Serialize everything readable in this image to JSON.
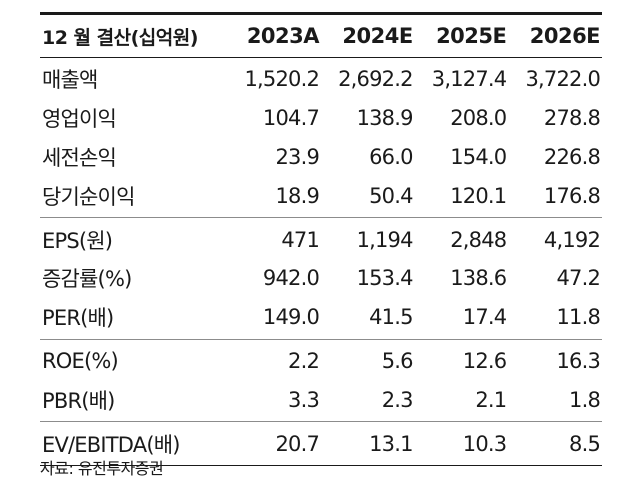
{
  "table": {
    "header": {
      "label": "12 월 결산(십억원)",
      "columns": [
        "2023A",
        "2024E",
        "2025E",
        "2026E"
      ]
    },
    "groups": [
      [
        {
          "label": "매출액",
          "values": [
            "1,520.2",
            "2,692.2",
            "3,127.4",
            "3,722.0"
          ]
        },
        {
          "label": "영업이익",
          "values": [
            "104.7",
            "138.9",
            "208.0",
            "278.8"
          ]
        },
        {
          "label": "세전손익",
          "values": [
            "23.9",
            "66.0",
            "154.0",
            "226.8"
          ]
        },
        {
          "label": "당기순이익",
          "values": [
            "18.9",
            "50.4",
            "120.1",
            "176.8"
          ]
        }
      ],
      [
        {
          "label": "EPS(원)",
          "values": [
            "471",
            "1,194",
            "2,848",
            "4,192"
          ]
        },
        {
          "label": "증감률(%)",
          "values": [
            "942.0",
            "153.4",
            "138.6",
            "47.2"
          ]
        },
        {
          "label": "PER(배)",
          "values": [
            "149.0",
            "41.5",
            "17.4",
            "11.8"
          ]
        }
      ],
      [
        {
          "label": "ROE(%)",
          "values": [
            "2.2",
            "5.6",
            "12.6",
            "16.3"
          ]
        },
        {
          "label": "PBR(배)",
          "values": [
            "3.3",
            "2.3",
            "2.1",
            "1.8"
          ]
        }
      ],
      [
        {
          "label": "EV/EBITDA(배)",
          "values": [
            "20.7",
            "13.1",
            "10.3",
            "8.5"
          ]
        }
      ]
    ]
  },
  "source": "자료: 유진투자증권"
}
